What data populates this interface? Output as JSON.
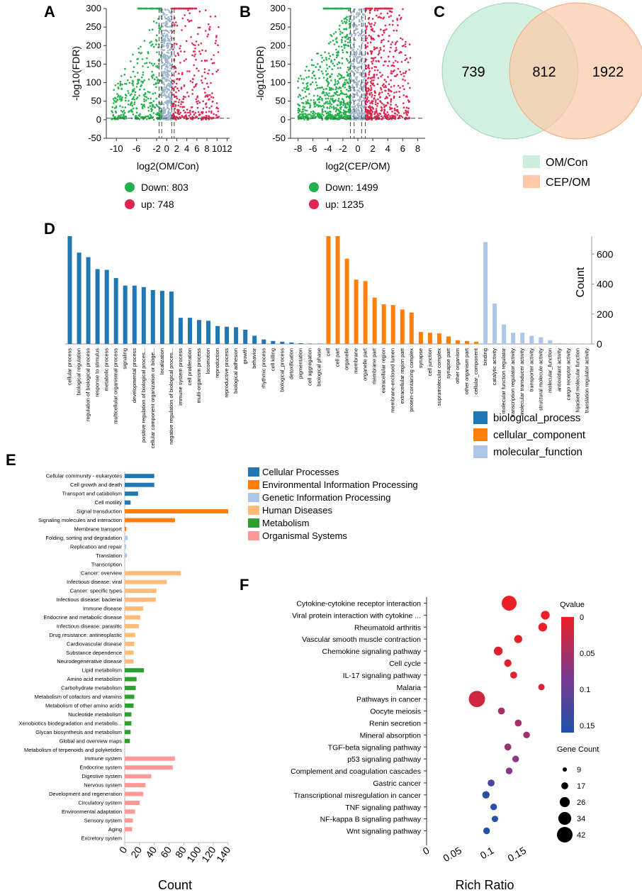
{
  "panels": {
    "A": "A",
    "B": "B",
    "C": "C",
    "D": "D",
    "E": "E",
    "F": "F"
  },
  "colors": {
    "down": "#22b14c",
    "up": "#e0264e",
    "ns": "#9fb6cc",
    "bp": "#1f77b4",
    "cc": "#ff7f0e",
    "mf": "#aec7e8",
    "kegg": [
      "#1f77b4",
      "#ff7f0e",
      "#aec7e8",
      "#ffbb78",
      "#2ca02c",
      "#ff9896"
    ],
    "venn_left": "#cdeedd",
    "venn_right": "#fcc8a6"
  },
  "chart_data": [
    {
      "id": "A",
      "type": "scatter",
      "title": "",
      "xlabel": "log2(OM/Con)",
      "ylabel": "-log10(FDR)",
      "xticks": [
        -10,
        -6,
        -2,
        0,
        2,
        4,
        6,
        8,
        10,
        12
      ],
      "yticks": [
        -50,
        0,
        50,
        100,
        150,
        200,
        250,
        300
      ],
      "xlim": [
        -12,
        12.5
      ],
      "ylim": [
        -50,
        300
      ],
      "fc_threshold": [
        -1,
        1
      ],
      "vlines": [
        -1.5,
        -1,
        1,
        1.5
      ],
      "legend": [
        {
          "label": "Down: 803",
          "class": "down"
        },
        {
          "label": "up: 748",
          "class": "up"
        }
      ],
      "counts": {
        "down": 803,
        "up": 748
      }
    },
    {
      "id": "B",
      "type": "scatter",
      "title": "",
      "xlabel": "log2(CEP/OM)",
      "ylabel": "-log10(FDR)",
      "xticks": [
        -8,
        -6,
        -4,
        -2,
        0,
        2,
        4,
        6,
        8
      ],
      "yticks": [
        -50,
        0,
        50,
        100,
        150,
        200,
        250,
        300
      ],
      "xlim": [
        -9,
        9
      ],
      "ylim": [
        -50,
        300
      ],
      "fc_threshold": [
        -1,
        1
      ],
      "vlines": [
        -1,
        -0.5,
        0.5,
        1
      ],
      "legend": [
        {
          "label": "Down: 1499",
          "class": "down"
        },
        {
          "label": "up: 1235",
          "class": "up"
        }
      ],
      "counts": {
        "down": 1499,
        "up": 1235
      }
    },
    {
      "id": "C",
      "type": "venn",
      "sets": [
        {
          "name": "OM/Con",
          "only": 739
        },
        {
          "name": "CEP/OM",
          "only": 1922
        }
      ],
      "intersection": 812,
      "legend": [
        "OM/Con",
        "CEP/OM"
      ]
    },
    {
      "id": "D",
      "type": "bar",
      "ylabel": "Count",
      "yticks": [
        0,
        200,
        400,
        600
      ],
      "ylim": [
        0,
        720
      ],
      "legend": [
        "biological_process",
        "cellular_component",
        "molecular_function"
      ],
      "categories": [
        "cellular process",
        "biological regulation",
        "regulation of biological process",
        "response to stimulus",
        "metabolic process",
        "multicellular organismal process",
        "signaling",
        "developmental process",
        "positive regulation of biological proces...",
        "cellular component organization or bioge...",
        "localization",
        "negative regulation of biological proces...",
        "immune system process",
        "cell proliferation",
        "multi-organism process",
        "locomotion",
        "reproduction",
        "reproductive process",
        "biological adhesion",
        "growth",
        "behavior",
        "rhythmic process",
        "cell killing",
        "biological_process",
        "detoxification",
        "pigmentation",
        "cell aggregation",
        "biological phase",
        "cell",
        "cell part",
        "organelle",
        "membrane",
        "organelle part",
        "membrane part",
        "extracellular region",
        "membrane-enclosed lumen",
        "extracellular region part",
        "protein-containing complex",
        "synapse",
        "cell junction",
        "supramolecular complex",
        "synapse part",
        "other organism",
        "other organism part",
        "cellular_component",
        "binding",
        "catalytic activity",
        "molecular function regulator",
        "transcription regulator activity",
        "molecular transducer activity",
        "transporter activity",
        "structural molecule activity",
        "molecular_function",
        "antioxidant activity",
        "cargo receptor activity",
        "hijacked molecular function",
        "translation regulator activity"
      ],
      "groups": [
        0,
        0,
        0,
        0,
        0,
        0,
        0,
        0,
        0,
        0,
        0,
        0,
        0,
        0,
        0,
        0,
        0,
        0,
        0,
        0,
        0,
        0,
        0,
        0,
        0,
        0,
        0,
        0,
        1,
        1,
        1,
        1,
        1,
        1,
        1,
        1,
        1,
        1,
        1,
        1,
        1,
        1,
        1,
        1,
        1,
        2,
        2,
        2,
        2,
        2,
        2,
        2,
        2,
        2,
        2,
        2,
        2
      ],
      "values": [
        720,
        610,
        580,
        500,
        495,
        440,
        390,
        390,
        380,
        360,
        355,
        350,
        175,
        175,
        160,
        155,
        120,
        115,
        112,
        95,
        55,
        30,
        20,
        15,
        10,
        5,
        3,
        2,
        720,
        720,
        570,
        430,
        420,
        310,
        265,
        260,
        230,
        210,
        80,
        75,
        70,
        50,
        25,
        20,
        15,
        680,
        270,
        130,
        75,
        75,
        55,
        45,
        25,
        5,
        3,
        2,
        2
      ]
    },
    {
      "id": "E",
      "type": "bar",
      "orientation": "horizontal",
      "xlabel": "Count",
      "xticks": [
        0,
        20,
        40,
        60,
        80,
        100,
        120,
        140
      ],
      "xlim": [
        0,
        140
      ],
      "legend": [
        "Cellular Processes",
        "Environmental Information Processing",
        "Genetic Information Processing",
        "Human Diseases",
        "Metabolism",
        "Organismal Systems"
      ],
      "categories": [
        "Cellular community - eukaryotes",
        "Cell growth and death",
        "Transport and catabolism",
        "Cell motility",
        "Signal transduction",
        "Signaling molecules and interaction",
        "Membrane transport",
        "Folding, sorting and degradation",
        "Replication and repair",
        "Translation",
        "Transcription",
        "Cancer: overview",
        "Infectious disease: viral",
        "Cancer: specific types",
        "Infectious disease: bacterial",
        "Immune disease",
        "Endocrine and metabolic disease",
        "Infectious disease: parasitic",
        "Drug resistance: antineoplastic",
        "Cardiovascular disease",
        "Substance dependence",
        "Neurodegenerative disease",
        "Lipid metabolism",
        "Amino acid metabolism",
        "Carbohydrate metabolism",
        "Metabolism of cofactors and vitamins",
        "Metabolism of other amino acids",
        "Nucleotide metabolism",
        "Xenobiotics biodegradation and metabolis...",
        "Glycan biosynthesis and metabolism",
        "Global and overview maps",
        "Metabolism of terpenoids and polyketides",
        "Immune system",
        "Endocrine system",
        "Digestive system",
        "Nervous system",
        "Development and regeneration",
        "Circulatory system",
        "Environmental adaptation",
        "Sensory system",
        "Aging",
        "Excretory system"
      ],
      "groups": [
        0,
        0,
        0,
        0,
        1,
        1,
        1,
        2,
        2,
        2,
        2,
        3,
        3,
        3,
        3,
        3,
        3,
        3,
        3,
        3,
        3,
        3,
        4,
        4,
        4,
        4,
        4,
        4,
        4,
        4,
        4,
        4,
        5,
        5,
        5,
        5,
        5,
        5,
        5,
        5,
        5,
        5
      ],
      "values": [
        40,
        40,
        18,
        8,
        140,
        68,
        2,
        4,
        2,
        3,
        0,
        76,
        57,
        43,
        42,
        25,
        21,
        19,
        14,
        13,
        12,
        12,
        26,
        16,
        15,
        13,
        12,
        9,
        9,
        8,
        7,
        0,
        68,
        65,
        36,
        28,
        25,
        20,
        14,
        11,
        10,
        0
      ]
    },
    {
      "id": "F",
      "type": "scatter",
      "subtype": "bubble",
      "xlabel": "Rich Ratio",
      "xticks": [
        0,
        0.05,
        0.1,
        0.15
      ],
      "xlim": [
        0,
        0.19
      ],
      "legend_color_title": "Qvalue",
      "qvalue_ticks": [
        0,
        0.05,
        0.1,
        0.15
      ],
      "qvalue_range": [
        0,
        0.16
      ],
      "legend_size_title": "Gene Count",
      "size_ticks": [
        9,
        17,
        26,
        34,
        42
      ],
      "categories": [
        "Cytokine-cytokine receptor interaction",
        "Viral protein interaction with cytokine ...",
        "Rheumatoid arthritis",
        "Vascular smooth muscle contraction",
        "Chemokine signaling pathway",
        "Cell cycle",
        "IL-17 signaling pathway",
        "Malaria",
        "Pathways in cancer",
        "Oocyte meiosis",
        "Renin secretion",
        "Mineral absorption",
        "TGF-beta signaling pathway",
        "p53 signaling pathway",
        "Complement and coagulation cascades",
        "Gastric cancer",
        "Transcriptional misregulation in cancer",
        "TNF signaling pathway",
        "NF-kappa B signaling pathway",
        "Wnt signaling pathway"
      ],
      "rich_ratio": [
        0.128,
        0.184,
        0.18,
        0.142,
        0.111,
        0.126,
        0.135,
        0.178,
        0.078,
        0.116,
        0.142,
        0.155,
        0.126,
        0.138,
        0.128,
        0.1,
        0.092,
        0.104,
        0.106,
        0.093
      ],
      "gene_count": [
        40,
        22,
        22,
        20,
        22,
        18,
        17,
        15,
        44,
        17,
        17,
        16,
        17,
        16,
        16,
        17,
        18,
        16,
        15,
        16
      ],
      "qvalue": [
        0.0,
        0.0,
        0.0,
        0.005,
        0.01,
        0.01,
        0.01,
        0.01,
        0.02,
        0.05,
        0.05,
        0.055,
        0.06,
        0.07,
        0.075,
        0.12,
        0.15,
        0.15,
        0.15,
        0.155
      ]
    }
  ]
}
